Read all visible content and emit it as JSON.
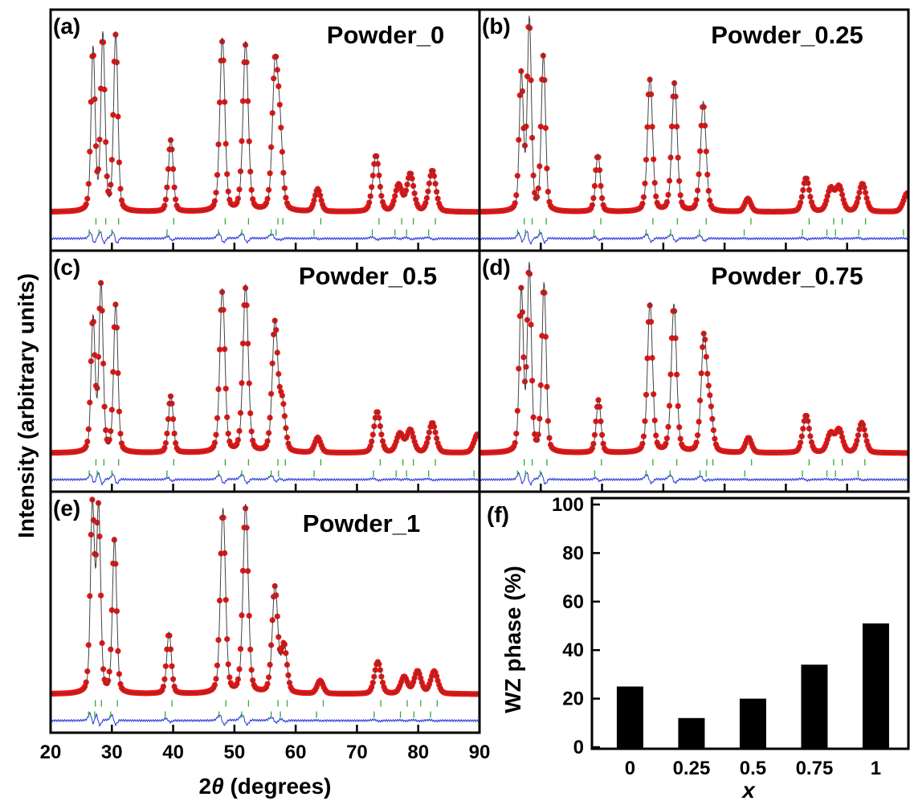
{
  "figure": {
    "ylabel": "Intensity (arbitrary units)",
    "xlabel_prefix": "2",
    "xlabel_theta": "θ",
    "xlabel_suffix": " (degrees)",
    "x_ticks": [
      "20",
      "30",
      "40",
      "50",
      "60",
      "70",
      "80",
      "90"
    ]
  },
  "chart_data": [
    {
      "type": "line",
      "panel": "(a)",
      "sample": "Powder_0",
      "x_range": [
        20,
        90
      ],
      "series": [],
      "peak_positions_2theta": [
        26.9,
        28.5,
        30.6,
        39.6,
        48.0,
        51.8,
        56.6,
        57.4,
        63.6,
        73.1,
        76.8,
        78.7,
        82.3
      ],
      "peak_rel_heights": [
        0.85,
        0.92,
        0.93,
        0.38,
        0.9,
        0.88,
        0.72,
        0.38,
        0.12,
        0.3,
        0.14,
        0.2,
        0.22
      ],
      "colors": {
        "observed": "#ee1111",
        "calculated": "#444444",
        "difference": "#2233dd",
        "bragg_marks": "#33aa33"
      }
    },
    {
      "type": "line",
      "panel": "(b)",
      "sample": "Powder_0.25",
      "x_range": [
        20,
        90
      ],
      "series": [],
      "peak_positions_2theta": [
        26.8,
        28.1,
        30.4,
        39.3,
        47.8,
        51.8,
        56.5,
        63.8,
        73.3,
        77.3,
        78.7,
        82.5,
        89.8
      ],
      "peak_rel_heights": [
        0.72,
        1.0,
        0.82,
        0.3,
        0.7,
        0.68,
        0.57,
        0.07,
        0.18,
        0.12,
        0.13,
        0.15,
        0.1
      ],
      "colors": {
        "observed": "#ee1111",
        "calculated": "#444444",
        "difference": "#2233dd",
        "bragg_marks": "#33aa33"
      }
    },
    {
      "type": "line",
      "panel": "(c)",
      "sample": "Powder_0.5",
      "x_range": [
        20,
        90
      ],
      "series": [],
      "peak_positions_2theta": [
        26.9,
        28.2,
        30.6,
        39.6,
        48.0,
        51.8,
        56.6,
        57.8,
        63.6,
        73.3,
        77.0,
        78.7,
        82.3,
        89.7
      ],
      "peak_rel_heights": [
        0.7,
        0.88,
        0.78,
        0.3,
        0.85,
        0.87,
        0.68,
        0.25,
        0.08,
        0.22,
        0.1,
        0.12,
        0.16,
        0.1
      ],
      "colors": {
        "observed": "#ee1111",
        "calculated": "#444444",
        "difference": "#2233dd",
        "bragg_marks": "#33aa33"
      }
    },
    {
      "type": "line",
      "panel": "(d)",
      "sample": "Powder_0.75",
      "x_range": [
        20,
        90
      ],
      "series": [],
      "peak_positions_2theta": [
        26.8,
        28.1,
        30.5,
        39.4,
        47.8,
        51.7,
        56.6,
        57.6,
        63.9,
        73.3,
        77.3,
        78.7,
        82.4
      ],
      "peak_rel_heights": [
        0.85,
        0.97,
        0.88,
        0.28,
        0.78,
        0.77,
        0.6,
        0.22,
        0.08,
        0.2,
        0.1,
        0.12,
        0.16
      ],
      "colors": {
        "observed": "#ee1111",
        "calculated": "#444444",
        "difference": "#2233dd",
        "bragg_marks": "#33aa33"
      }
    },
    {
      "type": "line",
      "panel": "(e)",
      "sample": "Powder_1",
      "x_range": [
        20,
        90
      ],
      "series": [],
      "peak_positions_2theta": [
        26.8,
        27.8,
        30.4,
        39.3,
        48.1,
        51.8,
        56.6,
        58.1,
        64.0,
        73.4,
        77.7,
        79.9,
        82.6
      ],
      "peak_rel_heights": [
        0.98,
        0.96,
        0.81,
        0.32,
        0.96,
        0.98,
        0.56,
        0.25,
        0.07,
        0.17,
        0.09,
        0.12,
        0.12
      ],
      "colors": {
        "observed": "#ee1111",
        "calculated": "#444444",
        "difference": "#2233dd",
        "bragg_marks": "#33aa33"
      }
    },
    {
      "type": "bar",
      "panel": "(f)",
      "categories": [
        "0",
        "0.25",
        "0.5",
        "0.75",
        "1"
      ],
      "values": [
        25,
        12,
        20,
        34,
        51
      ],
      "xlabel": "x",
      "ylabel": "WZ phase (%)",
      "ylim": [
        0,
        100
      ],
      "y_ticks": [
        "0",
        "20",
        "40",
        "60",
        "80",
        "100"
      ],
      "bar_color": "#000000"
    }
  ]
}
